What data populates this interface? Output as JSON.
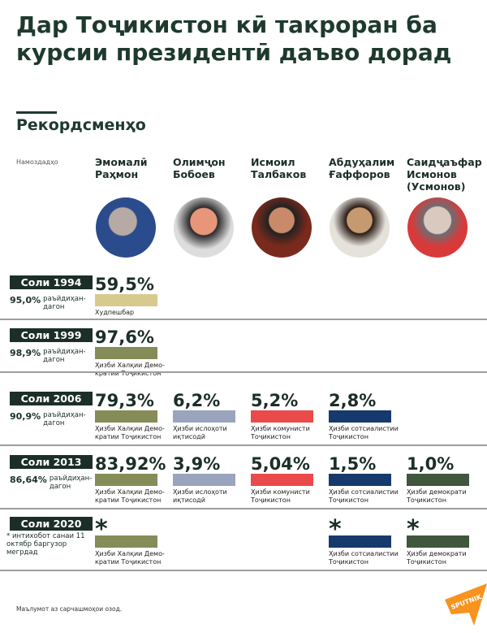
{
  "title": "Дар Тоҷикистон кӣ такроран ба курсии президентӣ даъво дорад",
  "subtitle": "Рекордсменҳо",
  "candidates_label": "Намоздадҳо",
  "candidates": [
    {
      "name": "Эмомалӣ Раҳмон"
    },
    {
      "name": "Олимҷон Бобоев"
    },
    {
      "name": "Исмоил Талбаков"
    },
    {
      "name": "Абдуҳалим Ғаффоров"
    },
    {
      "name": "Саидҷаъфар Исмонов (Усмонов)"
    }
  ],
  "turnout_word": "раъйдиҳан-дагон",
  "colors": {
    "independent": "#d8c98f",
    "pdpt": "#868c58",
    "economic_reform": "#9aa5bd",
    "communist": "#ea4a4a",
    "socialist": "#163a6b",
    "democratic": "#40573d",
    "badge": "#1c2e28"
  },
  "elections": [
    {
      "year": "Соли 1994",
      "turnout": "95,0%",
      "results": [
        {
          "col": 0,
          "value": "59,5%",
          "party": "Худпешбар",
          "color": "#d8c98f"
        }
      ]
    },
    {
      "year": "Соли 1999",
      "turnout": "98,9%",
      "results": [
        {
          "col": 0,
          "value": "97,6%",
          "party": "Ҳизби Халқии Демо-кратии Тоҷикистон",
          "color": "#868c58"
        }
      ]
    },
    {
      "year": "Соли 2006",
      "turnout": "90,9%",
      "results": [
        {
          "col": 0,
          "value": "79,3%",
          "party": "Ҳизби Халқии Демо-кратии Тоҷикистон",
          "color": "#868c58"
        },
        {
          "col": 1,
          "value": "6,2%",
          "party": "Ҳизби ислоҳоти иқтисодӣ",
          "color": "#9aa5bd"
        },
        {
          "col": 2,
          "value": "5,2%",
          "party": "Ҳизби комунисти Тоҷикистон",
          "color": "#ea4a4a"
        },
        {
          "col": 3,
          "value": "2,8%",
          "party": "Ҳизби сотсиалистии Тоҷикистон",
          "color": "#163a6b"
        }
      ]
    },
    {
      "year": "Соли 2013",
      "turnout": "86,64%",
      "results": [
        {
          "col": 0,
          "value": "83,92%",
          "party": "Ҳизби Халқии Демо-кратии Тоҷикистон",
          "color": "#868c58"
        },
        {
          "col": 1,
          "value": "3,9%",
          "party": "Ҳизби ислоҳоти иқтисодӣ",
          "color": "#9aa5bd"
        },
        {
          "col": 2,
          "value": "5,04%",
          "party": "Ҳизби комунисти Тоҷикистон",
          "color": "#ea4a4a"
        },
        {
          "col": 3,
          "value": "1,5%",
          "party": "Ҳизби сотсиалистии Тоҷикистон",
          "color": "#163a6b"
        },
        {
          "col": 4,
          "value": "1,0%",
          "party": "Ҳизби демократи Тоҷикистон",
          "color": "#40573d"
        }
      ]
    },
    {
      "year": "Соли 2020",
      "note": "* интихобот санаи 11 октябр баргузор мегрдад",
      "results": [
        {
          "col": 0,
          "value": "*",
          "party": "Ҳизби Халқии Демо-кратии Тоҷикистон",
          "color": "#868c58"
        },
        {
          "col": 3,
          "value": "*",
          "party": "Ҳизби сотсиалистии Тоҷикистон",
          "color": "#163a6b"
        },
        {
          "col": 4,
          "value": "*",
          "party": "Ҳизби демократи Тоҷикистон",
          "color": "#40573d"
        }
      ]
    }
  ],
  "source": "Маълумот аз сарчашмоҳои озод.",
  "logo": "SPUTNIK"
}
